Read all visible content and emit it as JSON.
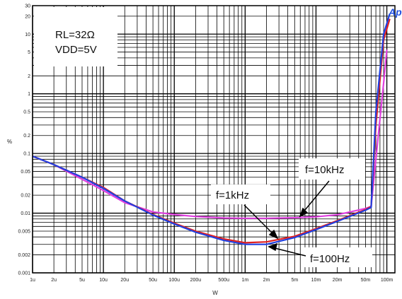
{
  "chart_data": {
    "type": "line",
    "xlabel": "W",
    "ylabel": "%",
    "x_scale": "log",
    "y_scale": "log",
    "xlim": [
      1e-06,
      0.13
    ],
    "ylim": [
      0.001,
      30
    ],
    "x_ticks": [
      {
        "v": 1e-06,
        "label": "1u"
      },
      {
        "v": 2e-06,
        "label": "2u"
      },
      {
        "v": 5e-06,
        "label": "5u"
      },
      {
        "v": 1e-05,
        "label": "10u"
      },
      {
        "v": 2e-05,
        "label": "20u"
      },
      {
        "v": 5e-05,
        "label": "50u"
      },
      {
        "v": 0.0001,
        "label": "100u"
      },
      {
        "v": 0.0002,
        "label": "200u"
      },
      {
        "v": 0.0005,
        "label": "500u"
      },
      {
        "v": 0.001,
        "label": "1m"
      },
      {
        "v": 0.002,
        "label": "2m"
      },
      {
        "v": 0.005,
        "label": "5m"
      },
      {
        "v": 0.01,
        "label": "10m"
      },
      {
        "v": 0.02,
        "label": "20m"
      },
      {
        "v": 0.05,
        "label": "50m"
      },
      {
        "v": 0.1,
        "label": "100m"
      }
    ],
    "y_ticks": [
      {
        "v": 0.001,
        "label": "0.001"
      },
      {
        "v": 0.002,
        "label": "0.002"
      },
      {
        "v": 0.005,
        "label": "0.005"
      },
      {
        "v": 0.01,
        "label": "0.01"
      },
      {
        "v": 0.02,
        "label": "0.02"
      },
      {
        "v": 0.05,
        "label": "0.05"
      },
      {
        "v": 0.1,
        "label": "0.1"
      },
      {
        "v": 0.2,
        "label": "0.2"
      },
      {
        "v": 0.5,
        "label": "0.5"
      },
      {
        "v": 1,
        "label": "1"
      },
      {
        "v": 2,
        "label": "2"
      },
      {
        "v": 5,
        "label": "5"
      },
      {
        "v": 10,
        "label": "10"
      },
      {
        "v": 20,
        "label": "20"
      },
      {
        "v": 30,
        "label": "30"
      }
    ],
    "grid": true,
    "conditions": [
      "RL=32Ω",
      "VDD=5V"
    ],
    "annotations": [
      {
        "text": "f=10kHz",
        "series": "f=10kHz"
      },
      {
        "text": "f=1kHz",
        "series": "f=1kHz"
      },
      {
        "text": "f=100Hz",
        "series": "f=100Hz"
      }
    ],
    "series": [
      {
        "name": "f=10kHz",
        "color": "#e040e0",
        "points": [
          [
            1e-06,
            0.09
          ],
          [
            2e-06,
            0.065
          ],
          [
            5e-06,
            0.037
          ],
          [
            1e-05,
            0.024
          ],
          [
            2e-05,
            0.015
          ],
          [
            5e-05,
            0.0105
          ],
          [
            0.0001,
            0.0095
          ],
          [
            0.0002,
            0.0088
          ],
          [
            0.0005,
            0.0083
          ],
          [
            0.001,
            0.0082
          ],
          [
            0.002,
            0.0082
          ],
          [
            0.005,
            0.0084
          ],
          [
            0.01,
            0.0087
          ],
          [
            0.02,
            0.0094
          ],
          [
            0.05,
            0.012
          ],
          [
            0.06,
            0.013
          ],
          [
            0.07,
            0.08
          ],
          [
            0.09,
            1.5
          ],
          [
            0.1,
            5.5
          ]
        ]
      },
      {
        "name": "f=1kHz",
        "color": "#e02020",
        "points": [
          [
            1e-06,
            0.09
          ],
          [
            2e-06,
            0.065
          ],
          [
            5e-06,
            0.04
          ],
          [
            1e-05,
            0.027
          ],
          [
            2e-05,
            0.016
          ],
          [
            5e-05,
            0.0095
          ],
          [
            0.0001,
            0.0068
          ],
          [
            0.0002,
            0.005
          ],
          [
            0.0005,
            0.0037
          ],
          [
            0.001,
            0.0032
          ],
          [
            0.002,
            0.0033
          ],
          [
            0.005,
            0.0041
          ],
          [
            0.01,
            0.0055
          ],
          [
            0.02,
            0.0075
          ],
          [
            0.05,
            0.0115
          ],
          [
            0.06,
            0.013
          ],
          [
            0.07,
            0.3
          ],
          [
            0.09,
            8
          ],
          [
            0.11,
            18
          ]
        ]
      },
      {
        "name": "f=100Hz",
        "color": "#2040e0",
        "points": [
          [
            1e-06,
            0.09
          ],
          [
            2e-06,
            0.065
          ],
          [
            5e-06,
            0.04
          ],
          [
            1e-05,
            0.026
          ],
          [
            2e-05,
            0.016
          ],
          [
            5e-05,
            0.0093
          ],
          [
            0.0001,
            0.0066
          ],
          [
            0.0002,
            0.0048
          ],
          [
            0.0005,
            0.0035
          ],
          [
            0.001,
            0.003
          ],
          [
            0.002,
            0.003
          ],
          [
            0.005,
            0.0039
          ],
          [
            0.01,
            0.0053
          ],
          [
            0.02,
            0.0073
          ],
          [
            0.05,
            0.0112
          ],
          [
            0.06,
            0.0125
          ],
          [
            0.07,
            0.5
          ],
          [
            0.09,
            10
          ],
          [
            0.11,
            22
          ]
        ]
      }
    ]
  }
}
